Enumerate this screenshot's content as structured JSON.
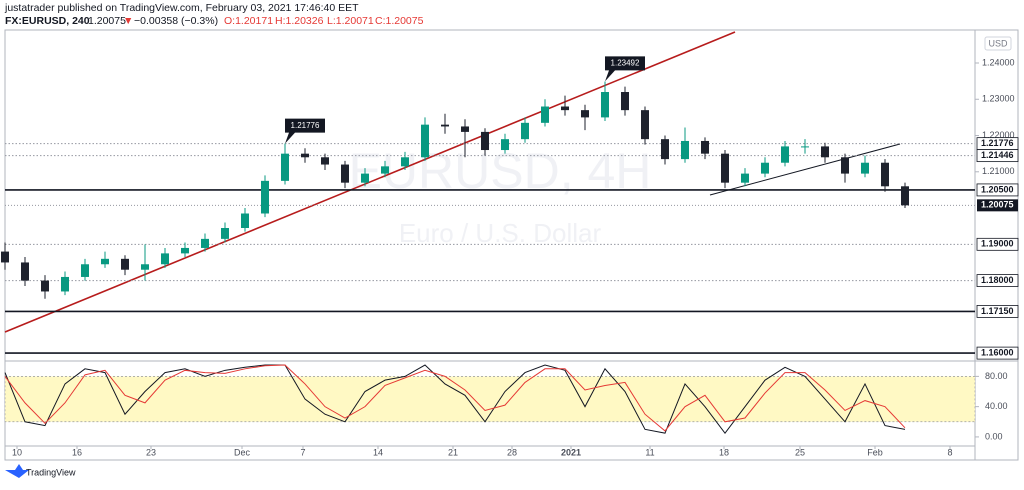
{
  "header": {
    "publisher": "justatrader published on TradingView.com, February 03, 2021 17:46:40 EET",
    "symbol": "FX:EURUSD, 240",
    "last": "1.20075",
    "arrow": "▼",
    "change": "−0.00358 (−0.3%)",
    "open": "O:1.20171",
    "high": "H:1.20326",
    "low": "L:1.20071",
    "close": "C:1.20075",
    "currency": "USD",
    "brand": "TradingView"
  },
  "chart_data": [
    {
      "type": "candlestick",
      "watermark": [
        "EURUSD, 4H",
        "Euro / U.S. Dollar"
      ],
      "x": [
        0,
        2,
        4,
        6,
        8,
        10,
        12,
        14,
        16,
        18,
        20,
        22,
        24,
        26,
        28,
        30,
        32,
        34,
        36,
        38,
        40,
        42,
        44,
        46,
        48,
        50,
        52,
        54,
        56,
        58,
        60,
        62,
        64,
        66,
        68,
        70,
        72,
        74,
        76,
        78,
        80,
        82,
        84,
        86,
        88,
        90
      ],
      "open": [
        1.188,
        1.185,
        1.18,
        1.177,
        1.181,
        1.1845,
        1.186,
        1.183,
        1.1845,
        1.1875,
        1.189,
        1.1915,
        1.1945,
        1.1985,
        1.2075,
        1.215,
        1.214,
        1.212,
        1.207,
        1.2095,
        1.2115,
        1.214,
        1.223,
        1.2225,
        1.221,
        1.216,
        1.219,
        1.2235,
        1.228,
        1.227,
        1.225,
        1.232,
        1.227,
        1.219,
        1.2135,
        1.2185,
        1.215,
        1.207,
        1.2095,
        1.2125,
        1.217,
        1.217,
        1.214,
        1.2095,
        1.2125,
        1.206
      ],
      "high": [
        1.1905,
        1.1865,
        1.1815,
        1.1825,
        1.186,
        1.188,
        1.187,
        1.19,
        1.189,
        1.1905,
        1.193,
        1.196,
        1.2,
        1.209,
        1.2178,
        1.2165,
        1.215,
        1.213,
        1.211,
        1.213,
        1.2155,
        1.225,
        1.226,
        1.2245,
        1.222,
        1.2205,
        1.225,
        1.23,
        1.231,
        1.2285,
        1.2349,
        1.2335,
        1.228,
        1.22,
        1.2222,
        1.2195,
        1.216,
        1.211,
        1.214,
        1.2185,
        1.219,
        1.218,
        1.215,
        1.2145,
        1.2135,
        1.207
      ],
      "low": [
        1.183,
        1.1785,
        1.175,
        1.176,
        1.18,
        1.1835,
        1.1815,
        1.18,
        1.1835,
        1.1865,
        1.188,
        1.1905,
        1.1935,
        1.1975,
        1.2065,
        1.2125,
        1.2105,
        1.2055,
        1.206,
        1.2085,
        1.2105,
        1.213,
        1.2205,
        1.214,
        1.2145,
        1.215,
        1.218,
        1.2225,
        1.2255,
        1.2215,
        1.224,
        1.2255,
        1.2175,
        1.212,
        1.2125,
        1.2135,
        1.2055,
        1.206,
        1.2085,
        1.2115,
        1.215,
        1.2125,
        1.207,
        1.2085,
        1.2045,
        1.2
      ],
      "close": [
        1.185,
        1.18,
        1.177,
        1.181,
        1.1845,
        1.186,
        1.183,
        1.1845,
        1.1875,
        1.189,
        1.1915,
        1.1945,
        1.1985,
        1.2075,
        1.215,
        1.214,
        1.212,
        1.207,
        1.2095,
        1.2115,
        1.214,
        1.223,
        1.2225,
        1.221,
        1.216,
        1.219,
        1.2235,
        1.228,
        1.227,
        1.225,
        1.232,
        1.227,
        1.219,
        1.2135,
        1.2185,
        1.215,
        1.207,
        1.2095,
        1.2125,
        1.217,
        1.217,
        1.214,
        1.2095,
        1.2125,
        1.206,
        1.20075
      ],
      "up_color": "#089981",
      "down_color": "#1e222d",
      "xlim": [
        0,
        97
      ],
      "xticks": [
        {
          "value": 1.2,
          "label": "10"
        },
        {
          "value": 7.2,
          "label": "16"
        },
        {
          "value": 14.6,
          "label": "23"
        },
        {
          "value": 23.7,
          "label": "Dec"
        },
        {
          "value": 29.8,
          "label": "7"
        },
        {
          "value": 37.3,
          "label": "14"
        },
        {
          "value": 44.8,
          "label": "21"
        },
        {
          "value": 50.7,
          "label": "28"
        },
        {
          "value": 56.6,
          "label": "2021"
        },
        {
          "value": 64.5,
          "label": "11"
        },
        {
          "value": 71.9,
          "label": "18"
        },
        {
          "value": 79.5,
          "label": "25"
        },
        {
          "value": 87,
          "label": "Feb"
        },
        {
          "value": 94.5,
          "label": "8"
        }
      ],
      "ylim": [
        1.1581,
        1.2491
      ],
      "yticks": [
        {
          "value": 1.24,
          "label": "1.24000"
        },
        {
          "value": 1.23,
          "label": "1.23000"
        },
        {
          "value": 1.22,
          "label": "1.22000"
        },
        {
          "value": 1.21,
          "label": "1.21000"
        }
      ],
      "levels": [
        {
          "value": 1.21776,
          "label": "1.21776",
          "style": "dotted"
        },
        {
          "value": 1.21446,
          "label": "1.21446",
          "style": "dotted"
        },
        {
          "value": 1.205,
          "label": "1.20500",
          "style": "solid"
        },
        {
          "value": 1.19,
          "label": "1.19000",
          "style": "dotted"
        },
        {
          "value": 1.18,
          "label": "1.18000",
          "style": "dotted"
        },
        {
          "value": 1.1715,
          "label": "1.17150",
          "style": "solid"
        },
        {
          "value": 1.16,
          "label": "1.16000",
          "style": "solid"
        }
      ],
      "current": {
        "value": 1.20075,
        "label": "1.20075"
      },
      "annotations": [
        {
          "x": 28,
          "value": 1.21776,
          "label": "1.21776"
        },
        {
          "x": 60,
          "value": 1.23492,
          "label": "1.23492"
        }
      ]
    },
    {
      "type": "line",
      "x": [
        0,
        2,
        4,
        6,
        8,
        10,
        12,
        14,
        16,
        18,
        20,
        22,
        24,
        26,
        28,
        30,
        32,
        34,
        36,
        38,
        40,
        42,
        44,
        46,
        48,
        50,
        52,
        54,
        56,
        58,
        60,
        62,
        64,
        66,
        68,
        70,
        72,
        74,
        76,
        78,
        80,
        82,
        84,
        86,
        88,
        90
      ],
      "series": [
        {
          "color": "#131722",
          "values": [
            85,
            20,
            15,
            70,
            90,
            85,
            30,
            60,
            85,
            90,
            80,
            88,
            92,
            95,
            95,
            50,
            30,
            20,
            60,
            75,
            80,
            95,
            70,
            55,
            20,
            60,
            85,
            95,
            88,
            40,
            90,
            60,
            10,
            5,
            70,
            40,
            5,
            40,
            75,
            92,
            80,
            50,
            20,
            70,
            15,
            10
          ]
        },
        {
          "color": "#e53935",
          "values": [
            80,
            45,
            18,
            45,
            82,
            88,
            55,
            45,
            75,
            88,
            85,
            84,
            90,
            94,
            95,
            70,
            40,
            25,
            40,
            68,
            78,
            88,
            80,
            62,
            35,
            42,
            72,
            90,
            90,
            62,
            68,
            72,
            30,
            8,
            40,
            55,
            20,
            25,
            58,
            85,
            85,
            62,
            35,
            48,
            40,
            12
          ]
        }
      ],
      "band": [
        20,
        80
      ],
      "band_color": "#fff9c4",
      "xlim": [
        0,
        97
      ],
      "ylim": [
        -12,
        99
      ],
      "yticks": [
        {
          "value": 80,
          "label": "80.00"
        },
        {
          "value": 40,
          "label": "40.00"
        },
        {
          "value": 0,
          "label": "0.00"
        }
      ]
    }
  ]
}
